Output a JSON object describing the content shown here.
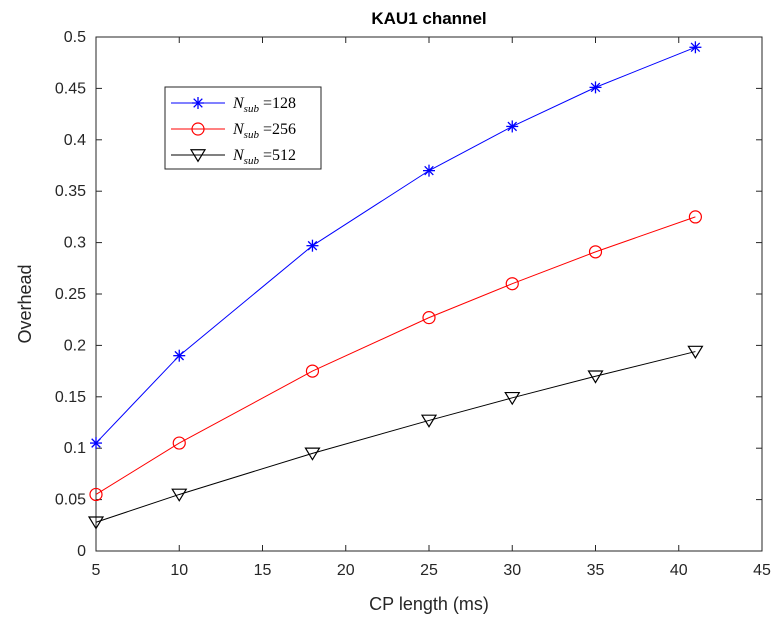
{
  "chart_data": {
    "type": "line",
    "title": "KAU1 channel",
    "xlabel": "CP length (ms)",
    "ylabel": "Overhead",
    "xlim": [
      5,
      45
    ],
    "ylim": [
      0,
      0.5
    ],
    "xticks": [
      "5",
      "10",
      "15",
      "20",
      "25",
      "30",
      "35",
      "40",
      "45"
    ],
    "yticks": [
      "0",
      "0.05",
      "0.1",
      "0.15",
      "0.2",
      "0.25",
      "0.3",
      "0.35",
      "0.4",
      "0.45",
      "0.5"
    ],
    "grid": false,
    "legend_position": "top-left",
    "x": [
      5,
      10,
      18,
      25,
      30,
      35,
      41
    ],
    "series": [
      {
        "name": "N_sub =128",
        "legend_main": "N",
        "legend_sub": "sub",
        "legend_value": " =128",
        "color": "#0000ff",
        "marker": "asterisk",
        "values": [
          0.105,
          0.19,
          0.297,
          0.37,
          0.413,
          0.451,
          0.49
        ]
      },
      {
        "name": "N_sub =256",
        "legend_main": "N",
        "legend_sub": "sub",
        "legend_value": " =256",
        "color": "#ff0000",
        "marker": "circle",
        "values": [
          0.055,
          0.105,
          0.175,
          0.227,
          0.26,
          0.291,
          0.325
        ]
      },
      {
        "name": "N_sub =512",
        "legend_main": "N",
        "legend_sub": "sub",
        "legend_value": " =512",
        "color": "#000000",
        "marker": "triangle-down",
        "values": [
          0.028,
          0.055,
          0.095,
          0.127,
          0.149,
          0.17,
          0.194
        ]
      }
    ]
  }
}
